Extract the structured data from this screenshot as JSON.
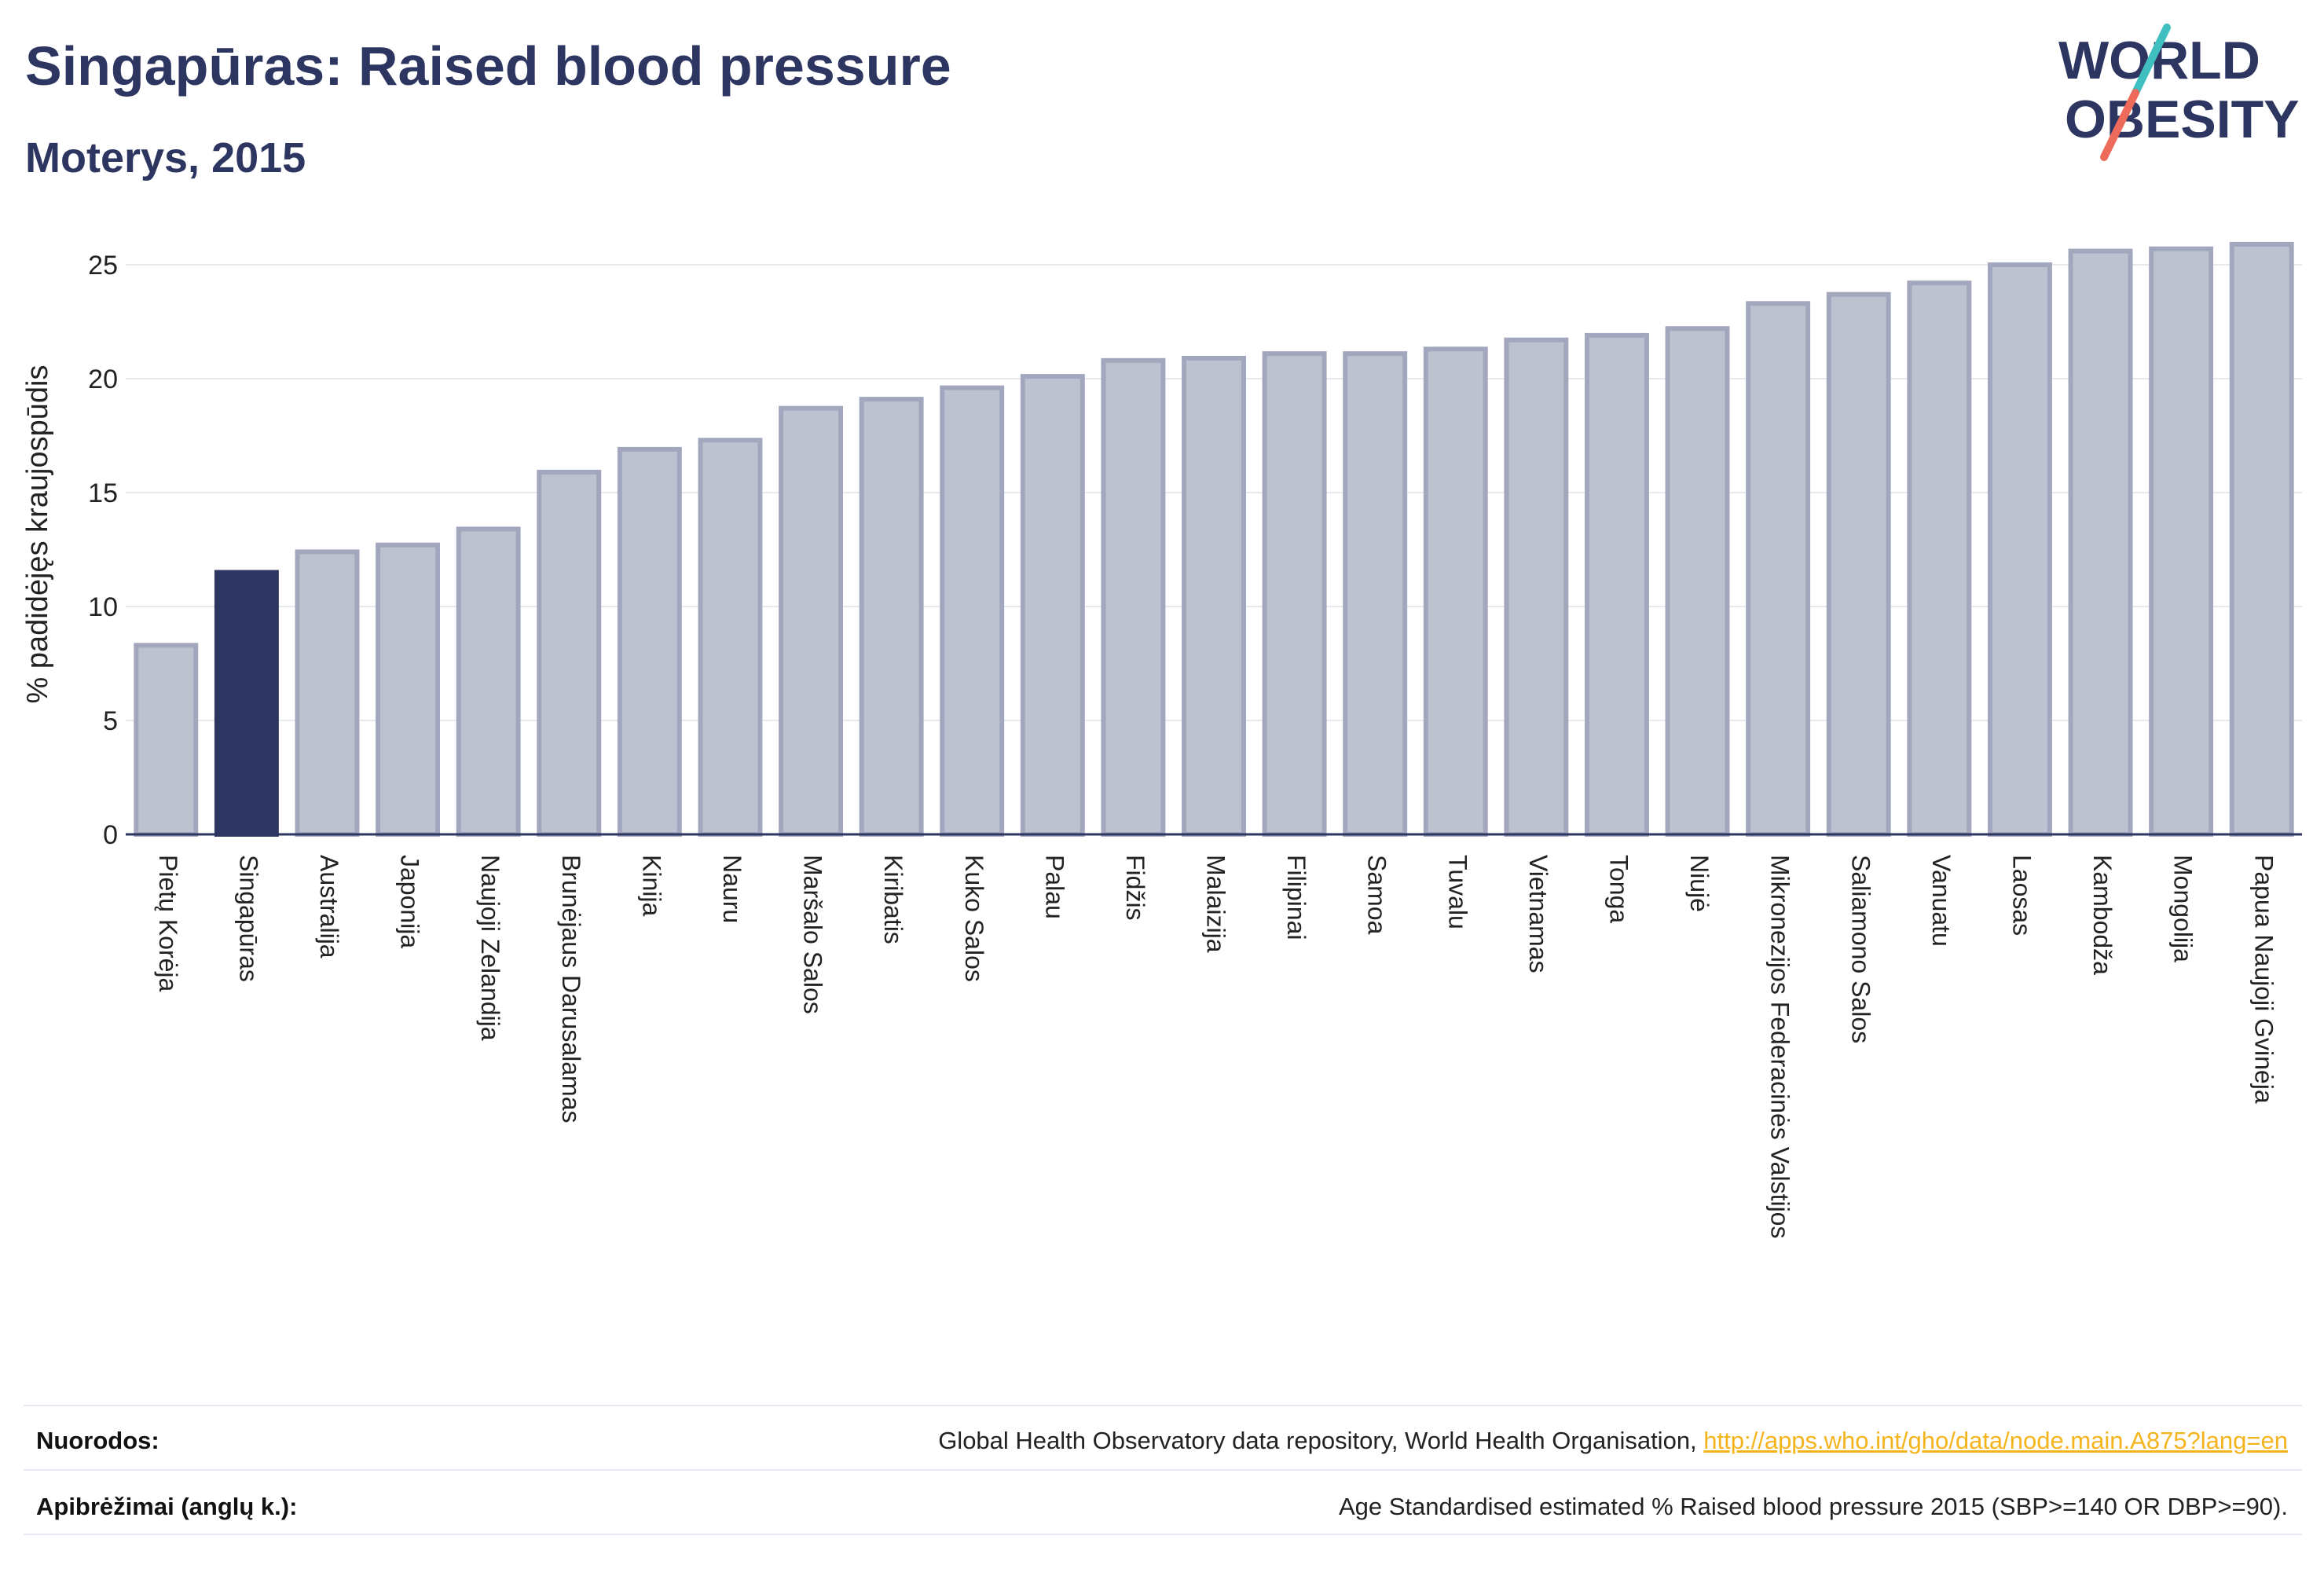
{
  "header": {
    "title": "Singapūras: Raised blood pressure",
    "subtitle": "Moterys, 2015"
  },
  "logo": {
    "line1": "WORLD",
    "line2": "OBESITY",
    "colors": {
      "text": "#2d3561",
      "slash_top": "#3fbfbf",
      "slash_bottom": "#ee6a5a"
    }
  },
  "colors": {
    "bar_default": "#bec2d0",
    "bar_default_stroke": "#a2a7bd",
    "bar_highlight": "#2d3561",
    "grid": "#e8e9ee",
    "axis": "#2d3561"
  },
  "chart_data": {
    "type": "bar",
    "ylabel": "% padidėjęs kraujospūdis",
    "ylim": [
      0,
      26
    ],
    "yticks": [
      0,
      5,
      10,
      15,
      20,
      25
    ],
    "grid": true,
    "highlight": "Singapūras",
    "categories": [
      "Pietų Korėja",
      "Singapūras",
      "Australija",
      "Japonija",
      "Naujoji Zelandija",
      "Brunėjaus Darusalamas",
      "Kinija",
      "Nauru",
      "Maršalo Salos",
      "Kiribatis",
      "Kuko Salos",
      "Palau",
      "Fidžis",
      "Malaizija",
      "Filipinai",
      "Samoa",
      "Tuvalu",
      "Vietnamas",
      "Tonga",
      "Niujė",
      "Mikronezijos Federacinės Valstijos",
      "Saliamono Salos",
      "Vanuatu",
      "Laosas",
      "Kambodža",
      "Mongolija",
      "Papua Naujoji Gvinėja"
    ],
    "values": [
      8.3,
      11.5,
      12.4,
      12.7,
      13.4,
      15.9,
      16.9,
      17.3,
      18.7,
      19.1,
      19.6,
      20.1,
      20.8,
      20.9,
      21.1,
      21.1,
      21.3,
      21.7,
      21.9,
      22.2,
      23.3,
      23.7,
      24.2,
      25.0,
      25.6,
      25.7,
      25.9
    ]
  },
  "footer": {
    "sources_label": "Nuorodos:",
    "sources_text": "Global Health Observatory data repository, World Health Organisation, ",
    "sources_link": "http://apps.who.int/gho/data/node.main.A875?lang=en",
    "definitions_label": "Apibrėžimai (anglų k.):",
    "definitions_text": "Age Standardised estimated % Raised blood pressure 2015 (SBP>=140 OR DBP>=90)."
  }
}
